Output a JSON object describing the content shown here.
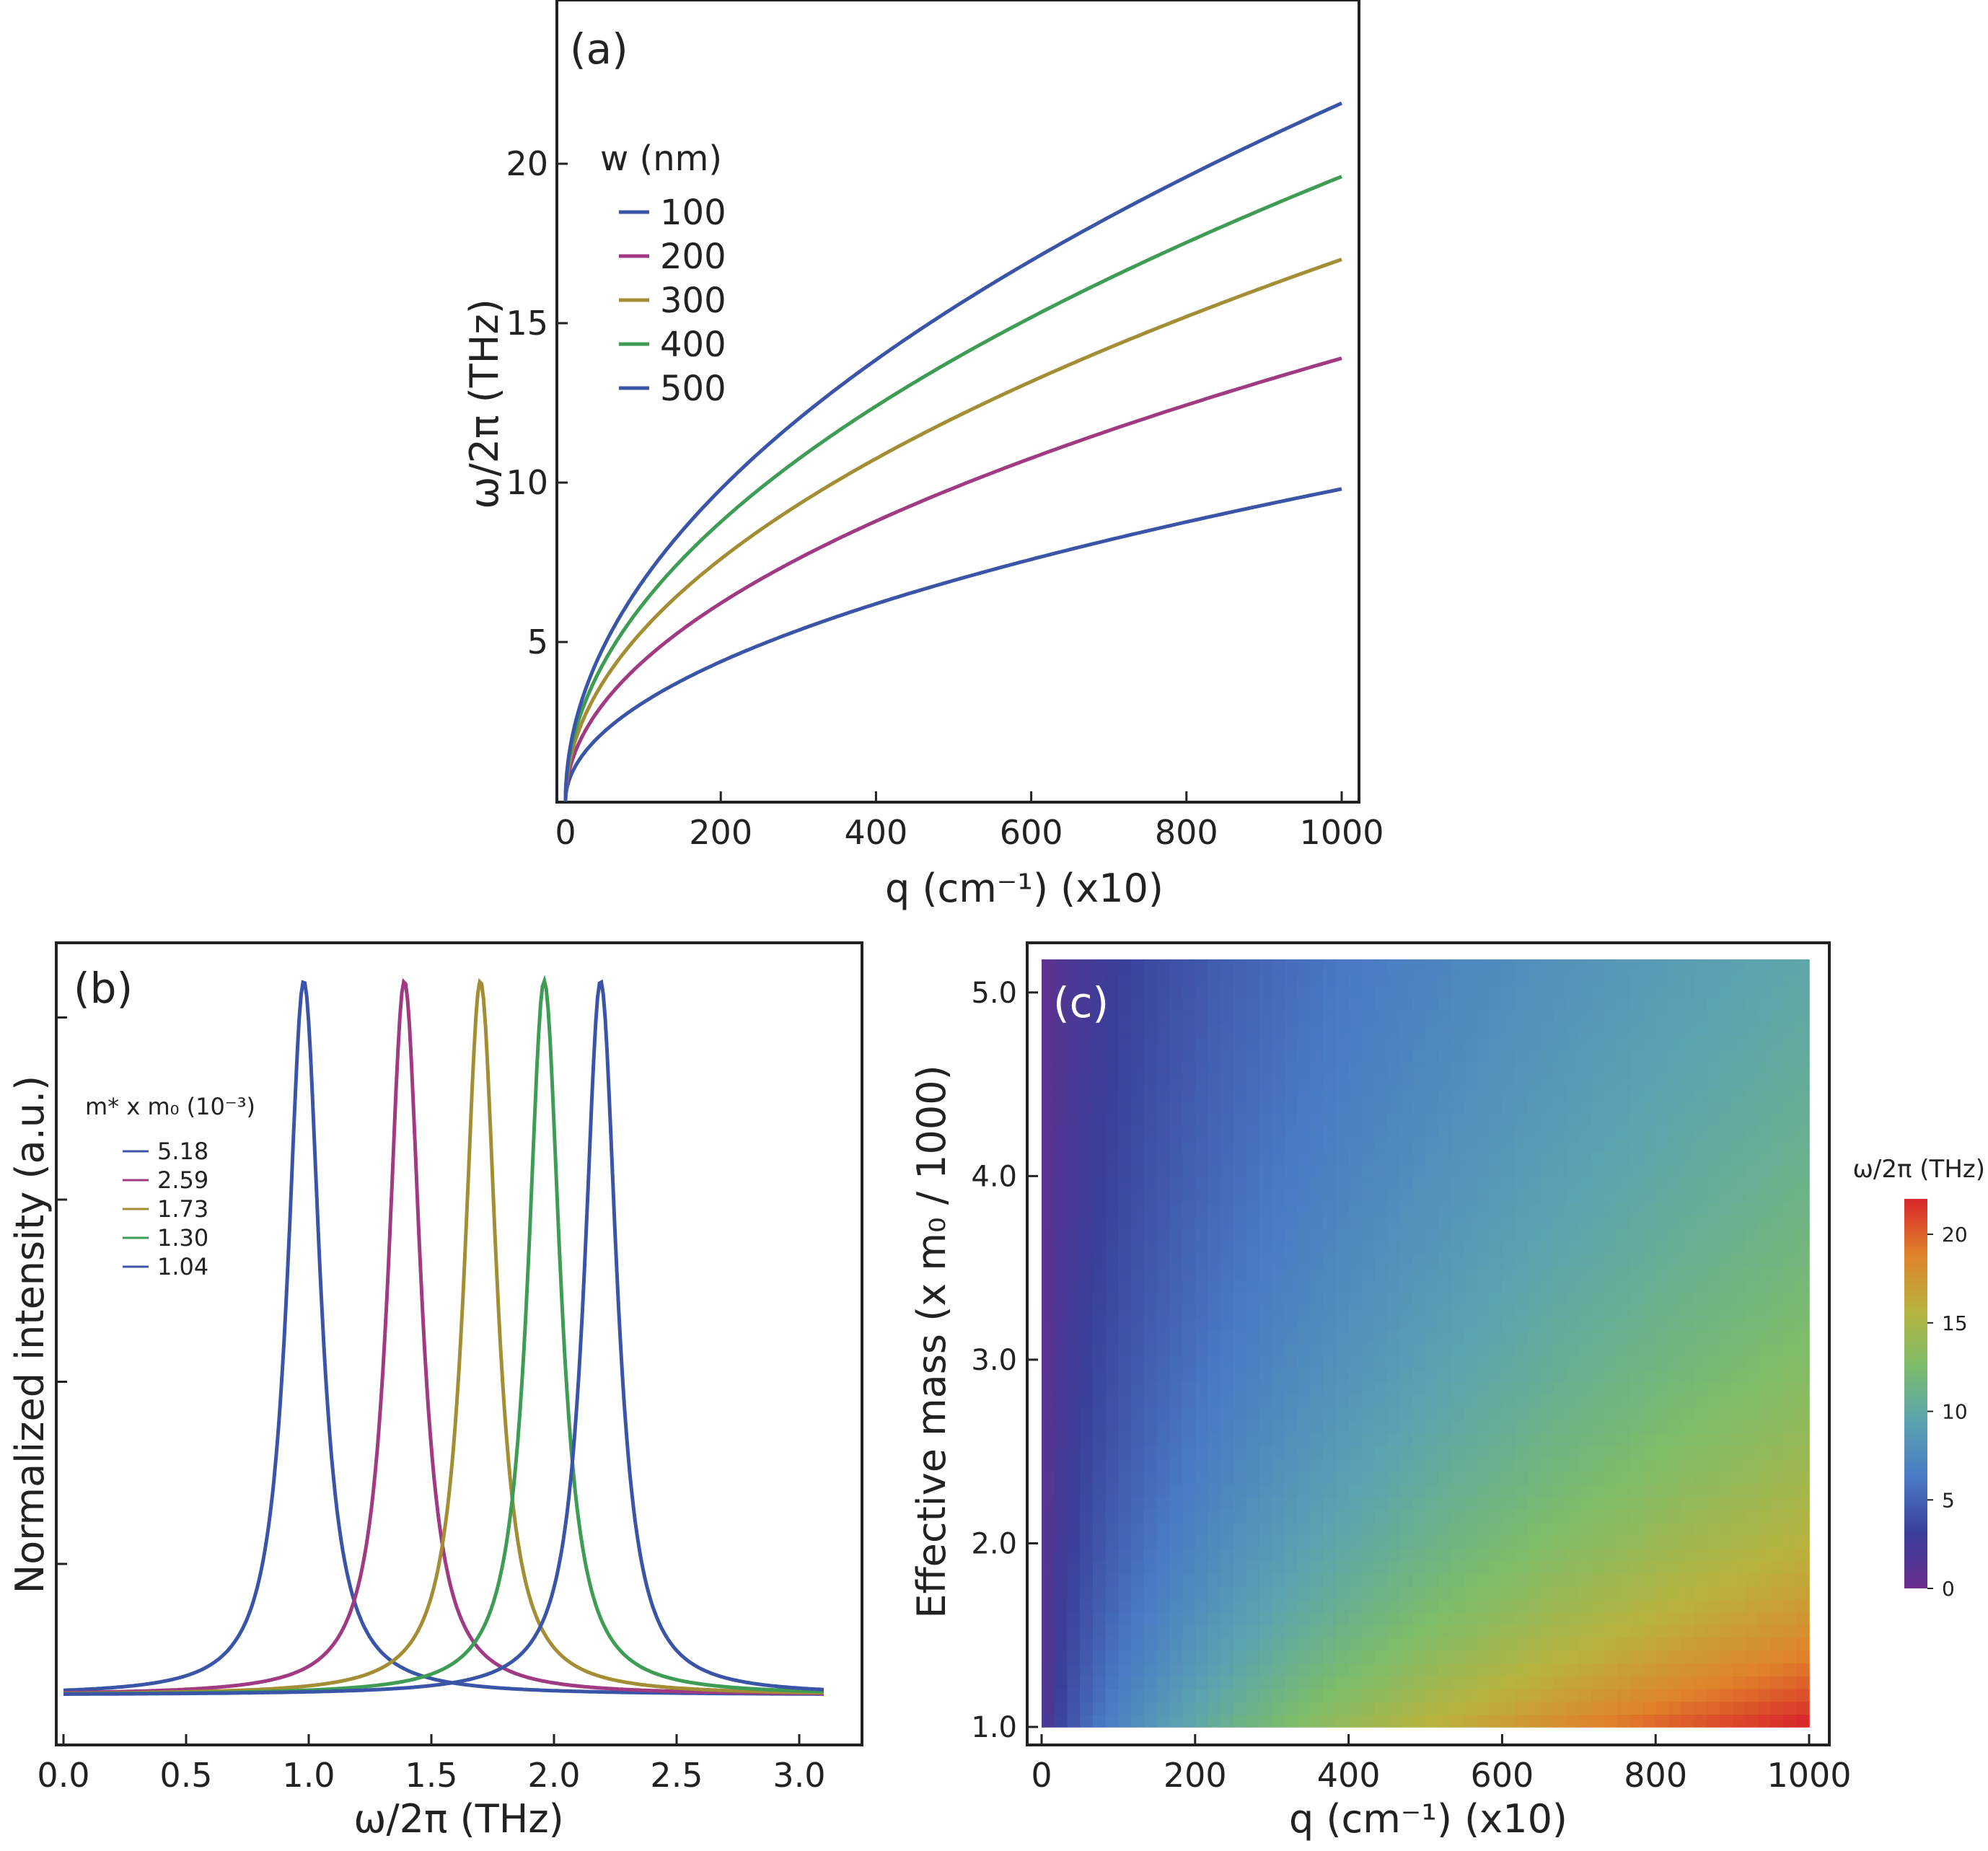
{
  "chart_data": [
    {
      "panel": "(a)",
      "type": "line",
      "xlabel": "q (cm⁻¹) (x10)",
      "ylabel": "ω/2π (THz)",
      "xlim": [
        0,
        1000
      ],
      "ylim": [
        0,
        25
      ],
      "xticks": [
        "0",
        "200",
        "400",
        "600",
        "800",
        "1000"
      ],
      "yticks": [
        "5",
        "10",
        "15",
        "20"
      ],
      "legend_title": "w (nm)",
      "legend_position": "top-left",
      "series": [
        {
          "name": "100",
          "color": "#3a55a8",
          "x": [
            0,
            25,
            50,
            100,
            200,
            300,
            400,
            500,
            600,
            700,
            800,
            900,
            1000
          ],
          "y": [
            0,
            1.5,
            2.2,
            3.1,
            4.4,
            5.4,
            6.2,
            6.9,
            7.6,
            8.2,
            8.8,
            9.3,
            9.8
          ]
        },
        {
          "name": "200",
          "color": "#a03a82",
          "x": [
            0,
            25,
            50,
            100,
            200,
            300,
            400,
            500,
            600,
            700,
            800,
            900,
            1000
          ],
          "y": [
            0,
            2.2,
            3.1,
            4.4,
            6.2,
            7.6,
            8.8,
            9.8,
            10.8,
            11.6,
            12.4,
            13.2,
            13.9
          ]
        },
        {
          "name": "300",
          "color": "#a38e35",
          "x": [
            0,
            25,
            50,
            100,
            200,
            300,
            400,
            500,
            600,
            700,
            800,
            900,
            1000
          ],
          "y": [
            0,
            2.7,
            3.8,
            5.4,
            7.6,
            9.3,
            10.8,
            12.0,
            13.2,
            14.2,
            15.2,
            16.1,
            17.0
          ]
        },
        {
          "name": "400",
          "color": "#3f9c55",
          "x": [
            0,
            25,
            50,
            100,
            200,
            300,
            400,
            500,
            600,
            700,
            800,
            900,
            1000
          ],
          "y": [
            0,
            3.1,
            4.4,
            6.2,
            8.8,
            10.8,
            12.4,
            13.9,
            15.2,
            16.4,
            17.5,
            18.6,
            19.6
          ]
        },
        {
          "name": "500",
          "color": "#3a55a8",
          "x": [
            0,
            25,
            50,
            100,
            200,
            300,
            400,
            500,
            600,
            700,
            800,
            900,
            1000
          ],
          "y": [
            0,
            3.5,
            4.9,
            6.9,
            9.8,
            12.0,
            13.9,
            15.5,
            17.0,
            18.4,
            19.6,
            20.8,
            21.9
          ]
        }
      ]
    },
    {
      "panel": "(b)",
      "type": "line",
      "xlabel": "ω/2π (THz)",
      "ylabel": "Normalized intensity (a.u.)",
      "xlim": [
        0,
        3.1
      ],
      "ylim": [
        0,
        1
      ],
      "xticks": [
        "0.0",
        "0.5",
        "1.0",
        "1.5",
        "2.0",
        "2.5",
        "3.0"
      ],
      "legend_title": "m* x m₀ (10⁻³)",
      "legend_position": "top-left",
      "lineshape": "lorentzian",
      "linewidth_thz": 0.16,
      "baseline": 0.02,
      "series": [
        {
          "name": "5.18",
          "color": "#3a55a8",
          "peak_x": 0.98,
          "peak_y": 1.0
        },
        {
          "name": "2.59",
          "color": "#a03a82",
          "peak_x": 1.39,
          "peak_y": 1.0
        },
        {
          "name": "1.73",
          "color": "#a38e35",
          "peak_x": 1.7,
          "peak_y": 1.0
        },
        {
          "name": "1.30",
          "color": "#3f9c55",
          "peak_x": 1.96,
          "peak_y": 1.0
        },
        {
          "name": "1.04",
          "color": "#3a55a8",
          "peak_x": 2.19,
          "peak_y": 1.0
        }
      ]
    },
    {
      "panel": "(c)",
      "type": "heatmap",
      "xlabel": "q (cm⁻¹) (x10)",
      "ylabel": "Effective mass (x m₀ / 1000)",
      "xlim": [
        0,
        1000
      ],
      "ylim": [
        1.0,
        5.18
      ],
      "xticks": [
        "0",
        "200",
        "400",
        "600",
        "800",
        "1000"
      ],
      "yticks": [
        "1.0",
        "2.0",
        "3.0",
        "4.0",
        "5.0"
      ],
      "colorbar": {
        "label": "ω/2π (THz)",
        "range": [
          0,
          22
        ],
        "ticks": [
          "0",
          "5",
          "10",
          "15",
          "20"
        ],
        "stops": [
          "#6b2d8e",
          "#3a3f9a",
          "#4a7ac6",
          "#5aa3b0",
          "#7cbc6a",
          "#b8b33e",
          "#e0822a",
          "#d8262a"
        ]
      }
    }
  ]
}
